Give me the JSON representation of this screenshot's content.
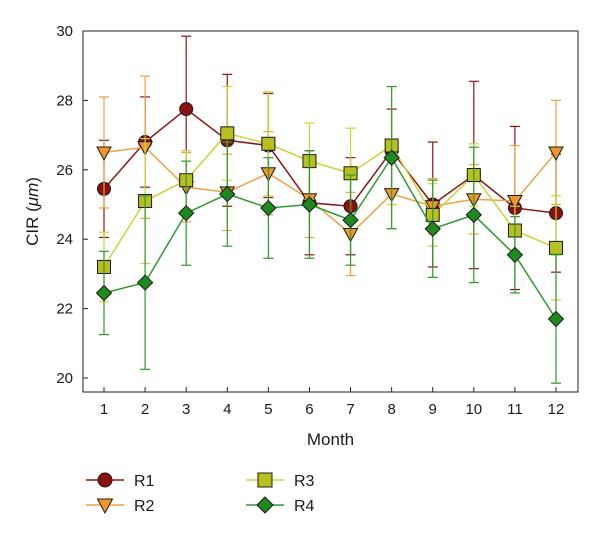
{
  "chart_data": {
    "type": "line",
    "title": "",
    "xlabel": "Month",
    "ylabel_main": "CIR (",
    "ylabel_unit": "μm",
    "ylabel_close": ")",
    "x": [
      1,
      2,
      3,
      4,
      5,
      6,
      7,
      8,
      9,
      10,
      11,
      12
    ],
    "xticks": [
      "1",
      "2",
      "3",
      "4",
      "5",
      "6",
      "7",
      "8",
      "9",
      "10",
      "11",
      "12"
    ],
    "xlim": [
      0.45,
      12.55
    ],
    "ylim": [
      19.7,
      30
    ],
    "yticks": [
      "20",
      "22",
      "24",
      "26",
      "28",
      "30"
    ],
    "grid": false,
    "legend_position": "bottom-left",
    "series": [
      {
        "name": "R1",
        "marker": "circle",
        "color": "#8b1616",
        "fill": "#8b1010",
        "values": [
          25.45,
          26.8,
          27.75,
          26.85,
          26.7,
          25.05,
          24.95,
          26.55,
          25.0,
          25.85,
          24.9,
          24.75
        ],
        "err": [
          1.4,
          1.3,
          2.1,
          1.9,
          1.5,
          1.5,
          1.4,
          1.2,
          1.8,
          2.7,
          2.35,
          1.7
        ]
      },
      {
        "name": "R2",
        "marker": "triangle-down",
        "color": "#f0a040",
        "fill": "#f2962a",
        "values": [
          26.5,
          26.65,
          25.5,
          25.35,
          25.9,
          25.15,
          24.15,
          25.3,
          24.95,
          25.15,
          25.1,
          26.5
        ],
        "err": [
          1.6,
          2.05,
          1.0,
          1.1,
          1.2,
          1.1,
          1.2,
          1.0,
          0.8,
          1.0,
          1.6,
          1.5
        ]
      },
      {
        "name": "R3",
        "marker": "square",
        "color": "#cdd23a",
        "fill": "#b8c020",
        "values": [
          23.2,
          25.1,
          25.7,
          27.05,
          26.75,
          26.25,
          25.9,
          26.7,
          24.7,
          25.85,
          24.25,
          23.75
        ],
        "err": [
          1.0,
          1.8,
          0.85,
          1.35,
          1.5,
          1.1,
          1.3,
          1.7,
          0.9,
          0.9,
          0.7,
          1.5
        ]
      },
      {
        "name": "R4",
        "marker": "diamond",
        "color": "#2e9a2e",
        "fill": "#1e8a1e",
        "values": [
          22.45,
          22.75,
          24.75,
          25.3,
          24.9,
          25.0,
          24.55,
          26.35,
          24.3,
          24.7,
          23.55,
          21.7
        ],
        "err": [
          1.2,
          2.5,
          1.5,
          1.5,
          1.45,
          1.55,
          1.3,
          2.05,
          1.4,
          1.95,
          1.1,
          1.85
        ]
      }
    ],
    "legend_order": [
      "R1",
      "R2",
      "R3",
      "R4"
    ]
  }
}
